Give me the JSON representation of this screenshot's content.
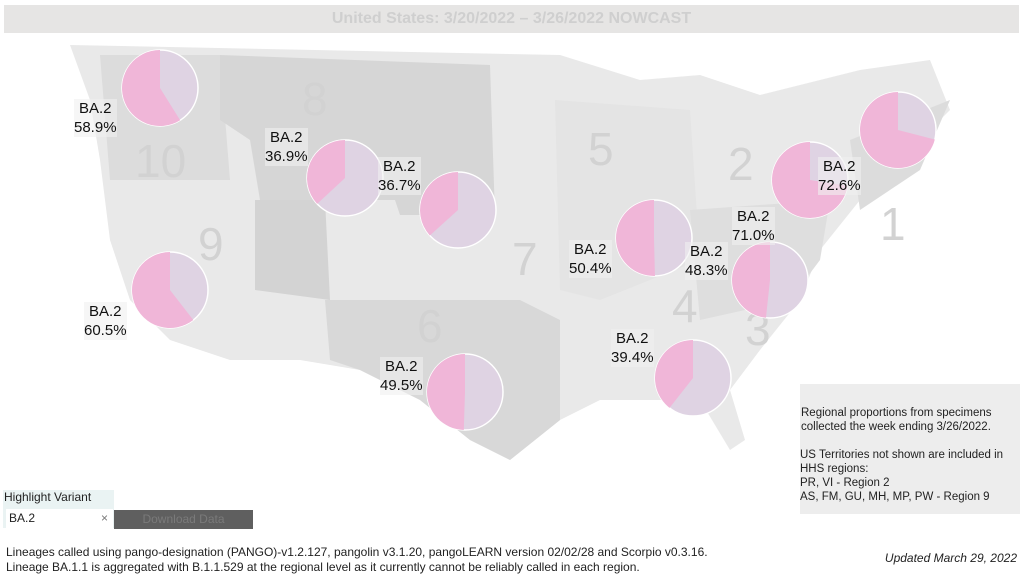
{
  "title": "United States: 3/20/2022 – 3/26/2022 NOWCAST",
  "colors": {
    "highlight": "#f0b6d8",
    "other": "#dfd3e3",
    "map": "#e9e9e9",
    "map_dark": "#d9d9d9"
  },
  "regions": [
    {
      "region": "10",
      "share": 0.589
    },
    {
      "region": "8",
      "share": 0.369
    },
    {
      "region": "7",
      "share": 0.367
    },
    {
      "region": "9",
      "share": 0.605
    },
    {
      "region": "6",
      "share": 0.495
    },
    {
      "region": "5",
      "share": 0.504
    },
    {
      "region": "4",
      "share": 0.394
    },
    {
      "region": "3",
      "share": 0.483
    },
    {
      "region": "2",
      "share": 0.726
    },
    {
      "region": "1",
      "share": 0.71
    }
  ],
  "labels": [
    {
      "variant": "BA.2",
      "pct": "58.9%"
    },
    {
      "variant": "BA.2",
      "pct": "36.9%"
    },
    {
      "variant": "BA.2",
      "pct": "36.7%"
    },
    {
      "variant": "BA.2",
      "pct": "60.5%"
    },
    {
      "variant": "BA.2",
      "pct": "49.5%"
    },
    {
      "variant": "BA.2",
      "pct": "50.4%"
    },
    {
      "variant": "BA.2",
      "pct": "48.3%"
    },
    {
      "variant": "BA.2",
      "pct": "71.0%"
    },
    {
      "variant": "BA.2",
      "pct": "72.6%"
    },
    {
      "variant": "BA.2",
      "pct": "39.4%"
    }
  ],
  "note": {
    "p1": "Regional proportions from specimens collected the week ending 3/26/2022.",
    "p2": "US Territories not shown are included in HHS regions:",
    "p3": "PR, VI - Region 2",
    "p4": "AS, FM, GU, MH, MP, PW - Region 9"
  },
  "highlight": {
    "label": "Highlight Variant",
    "value": "BA.2",
    "clear": "×",
    "download": "Download Data"
  },
  "footer": {
    "line1": "Lineages called using pango-designation (PANGO)-v1.2.127, pangolin v3.1.20, pangoLEARN version 02/02/28 and Scorpio v0.3.16.",
    "line2": "Lineage BA.1.1 is aggregated with B.1.1.529 at the regional level as it currently cannot be reliably called in each region.",
    "updated": "Updated March 29, 2022"
  }
}
